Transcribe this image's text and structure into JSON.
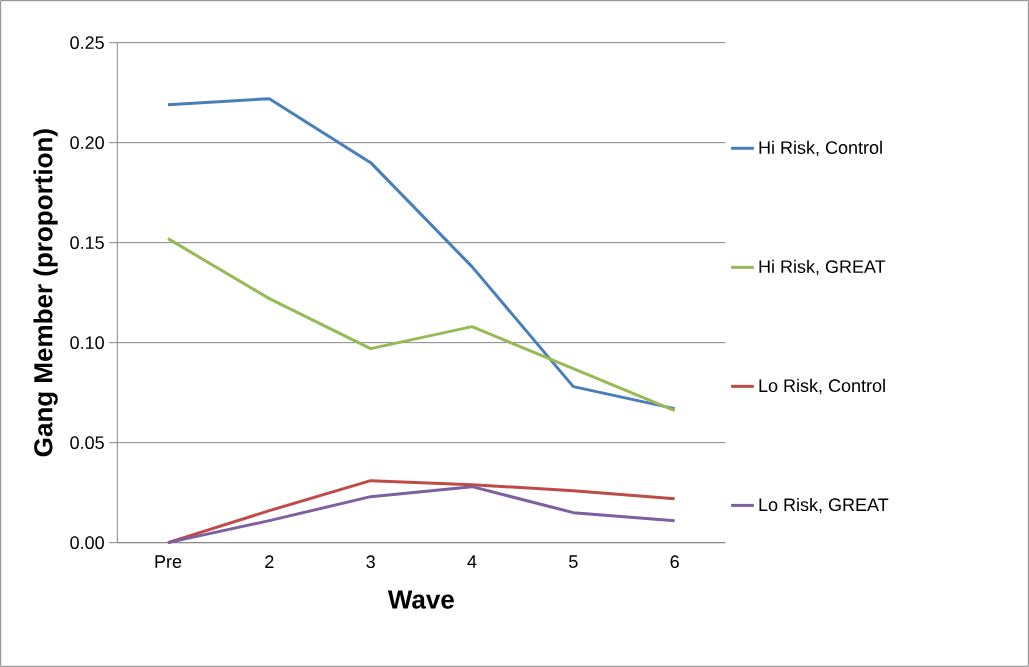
{
  "chart_data": {
    "type": "line",
    "xlabel": "Wave",
    "ylabel": "Gang Member (proportion)",
    "categories": [
      "Pre",
      "2",
      "3",
      "4",
      "5",
      "6"
    ],
    "series": [
      {
        "name": "Hi Risk, Control",
        "color": "#4a7ebb",
        "values": [
          0.219,
          0.222,
          0.19,
          0.138,
          0.078,
          0.067
        ]
      },
      {
        "name": "Hi Risk, GREAT",
        "color": "#98b954",
        "values": [
          0.152,
          0.122,
          0.097,
          0.108,
          0.087,
          0.066
        ]
      },
      {
        "name": "Lo Risk, Control",
        "color": "#be4b48",
        "values": [
          0.0,
          0.016,
          0.031,
          0.029,
          0.026,
          0.022
        ]
      },
      {
        "name": "Lo Risk, GREAT",
        "color": "#7d60a0",
        "values": [
          0.0,
          0.011,
          0.023,
          0.028,
          0.015,
          0.011
        ]
      }
    ],
    "ylim": [
      0,
      0.25
    ],
    "yticks": [
      {
        "value": 0,
        "label": "0.00"
      },
      {
        "value": 0.05,
        "label": "0.05"
      },
      {
        "value": 0.1,
        "label": "0.10"
      },
      {
        "value": 0.15,
        "label": "0.15"
      },
      {
        "value": 0.2,
        "label": "0.20"
      },
      {
        "value": 0.25,
        "label": "0.25"
      }
    ],
    "grid": "y",
    "legend": "right",
    "marker": "none",
    "line_style": "solid"
  }
}
